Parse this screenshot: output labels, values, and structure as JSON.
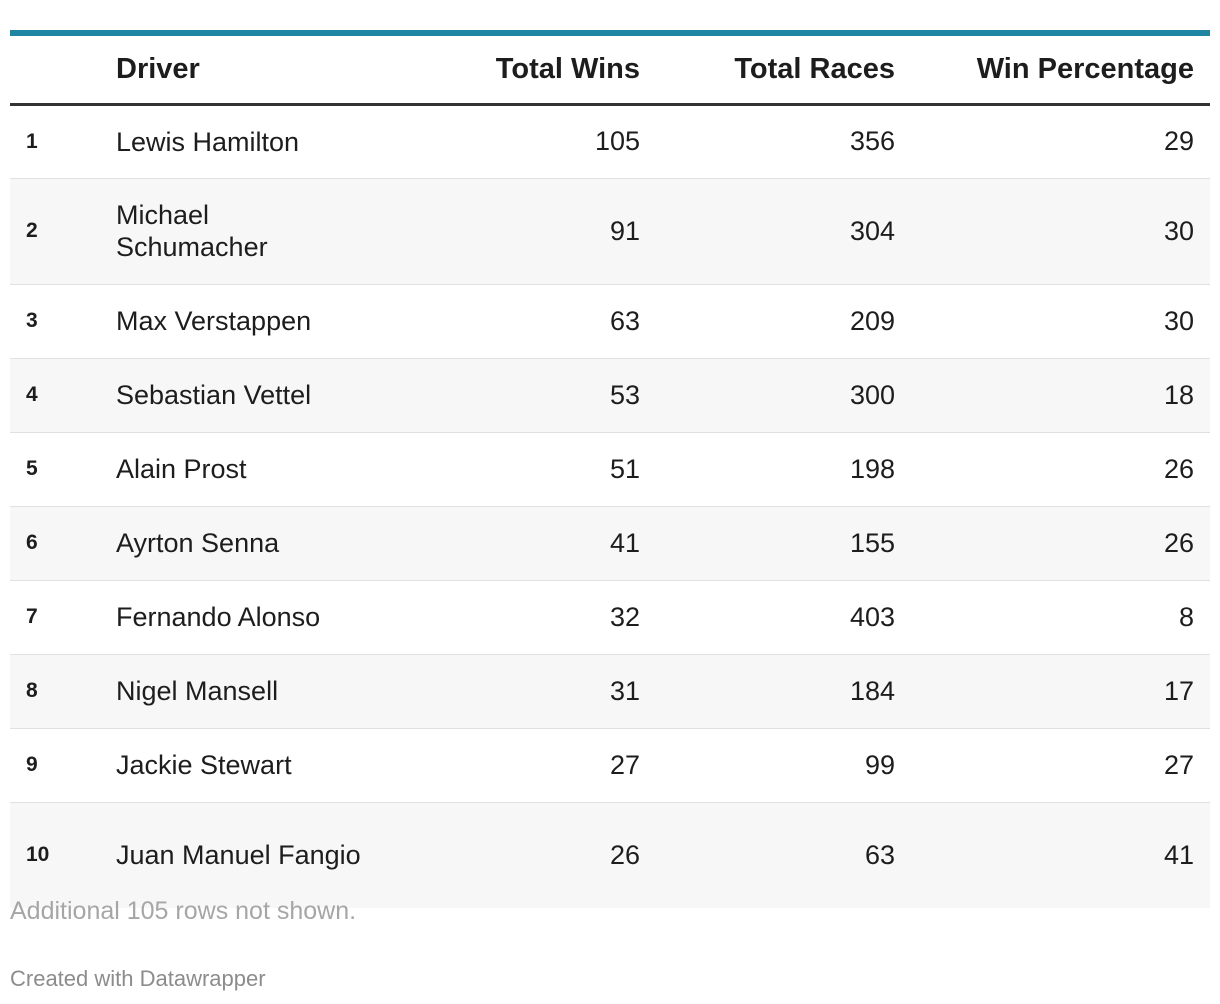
{
  "chart_data": {
    "type": "table",
    "columns": [
      "",
      "Driver",
      "Total Wins",
      "Total Races",
      "Win Percentage"
    ],
    "rows": [
      {
        "rank": "1",
        "driver": "Lewis Hamilton",
        "total_wins": 105,
        "total_races": 356,
        "win_percentage": 29
      },
      {
        "rank": "2",
        "driver": "Michael Schumacher",
        "total_wins": 91,
        "total_races": 304,
        "win_percentage": 30
      },
      {
        "rank": "3",
        "driver": "Max Verstappen",
        "total_wins": 63,
        "total_races": 209,
        "win_percentage": 30
      },
      {
        "rank": "4",
        "driver": "Sebastian Vettel",
        "total_wins": 53,
        "total_races": 300,
        "win_percentage": 18
      },
      {
        "rank": "5",
        "driver": "Alain Prost",
        "total_wins": 51,
        "total_races": 198,
        "win_percentage": 26
      },
      {
        "rank": "6",
        "driver": "Ayrton Senna",
        "total_wins": 41,
        "total_races": 155,
        "win_percentage": 26
      },
      {
        "rank": "7",
        "driver": "Fernando Alonso",
        "total_wins": 32,
        "total_races": 403,
        "win_percentage": 8
      },
      {
        "rank": "8",
        "driver": "Nigel Mansell",
        "total_wins": 31,
        "total_races": 184,
        "win_percentage": 17
      },
      {
        "rank": "9",
        "driver": "Jackie Stewart",
        "total_wins": 27,
        "total_races": 99,
        "win_percentage": 27
      },
      {
        "rank": "10",
        "driver": "Juan Manuel Fangio",
        "total_wins": 26,
        "total_races": 63,
        "win_percentage": 41
      }
    ],
    "note": "Additional 105 rows not shown.",
    "credit": "Created with Datawrapper"
  },
  "colors": {
    "accent_rule": "#1e86a2",
    "header_rule": "#333333",
    "zebra": "#f7f7f7",
    "note_text": "#a6a6a6"
  }
}
